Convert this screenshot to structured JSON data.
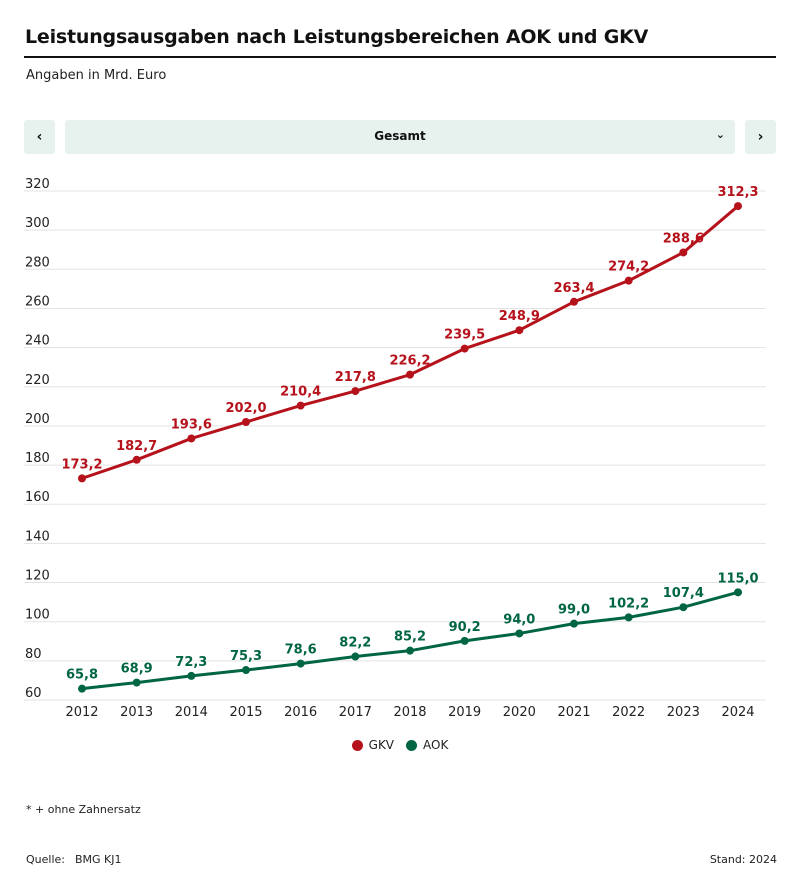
{
  "header": {
    "title": "Leistungsausgaben nach Leistungsbereichen AOK und GKV",
    "subtitle": "Angaben in Mrd. Euro"
  },
  "controls": {
    "prev_icon": "chevron-left-icon",
    "prev_glyph": "‹",
    "next_icon": "chevron-right-icon",
    "next_glyph": "›",
    "select_value": "Gesamt",
    "select_icon": "chevron-down-icon",
    "select_glyph": "⌄"
  },
  "colors": {
    "gkv": "#b5121b",
    "aok": "#006542",
    "grid": "#e3e3e3",
    "control_bg": "#e7f2ef"
  },
  "chart_data": {
    "type": "line",
    "title": "Leistungsausgaben nach Leistungsbereichen AOK und GKV",
    "subtitle": "Angaben in Mrd. Euro",
    "xlabel": "",
    "ylabel": "",
    "x": [
      "2012",
      "2013",
      "2014",
      "2015",
      "2016",
      "2017",
      "2018",
      "2019",
      "2020",
      "2021",
      "2022",
      "2023",
      "2024"
    ],
    "ylim": [
      60,
      320
    ],
    "yticks": [
      60,
      80,
      100,
      120,
      140,
      160,
      180,
      200,
      220,
      240,
      260,
      280,
      300,
      320
    ],
    "grid": true,
    "legend_position": "bottom-center",
    "series": [
      {
        "name": "GKV",
        "color": "#b5121b",
        "values": [
          173.2,
          182.7,
          193.6,
          202.0,
          210.4,
          217.8,
          226.2,
          239.5,
          248.9,
          263.4,
          274.2,
          288.6,
          312.3
        ],
        "labels": [
          "173,2",
          "182,7",
          "193,6",
          "202,0",
          "210,4",
          "217,8",
          "226,2",
          "239,5",
          "248,9",
          "263,4",
          "274,2",
          "288,6",
          "312,3"
        ]
      },
      {
        "name": "AOK",
        "color": "#006542",
        "values": [
          65.8,
          68.9,
          72.3,
          75.3,
          78.6,
          82.2,
          85.2,
          90.2,
          94.0,
          99.0,
          102.2,
          107.4,
          115.0
        ],
        "labels": [
          "65,8",
          "68,9",
          "72,3",
          "75,3",
          "78,6",
          "82,2",
          "85,2",
          "90,2",
          "94,0",
          "99,0",
          "102,2",
          "107,4",
          "115,0"
        ]
      }
    ]
  },
  "legend": [
    {
      "label": "GKV",
      "color": "#b5121b"
    },
    {
      "label": "AOK",
      "color": "#006542"
    }
  ],
  "footer": {
    "footnote": "* + ohne Zahnersatz",
    "source_label": "Quelle:",
    "source_value": "BMG KJ1",
    "stand": "Stand: 2024"
  }
}
